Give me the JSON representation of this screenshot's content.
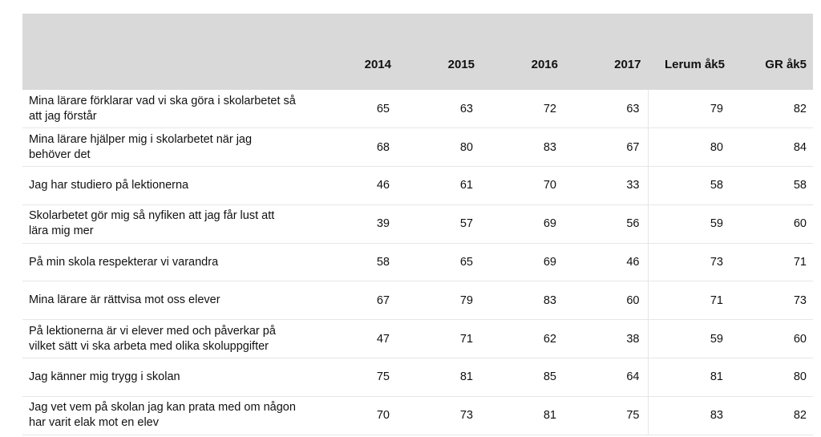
{
  "chart_data": {
    "type": "table",
    "columns": [
      "",
      "2014",
      "2015",
      "2016",
      "2017",
      "Lerum åk5",
      "GR åk5"
    ],
    "rows": [
      {
        "label": "Mina lärare förklarar vad vi ska göra i skolarbetet så att jag förstår",
        "values": [
          65,
          63,
          72,
          63,
          79,
          82
        ]
      },
      {
        "label": "Mina lärare hjälper mig i skolarbetet när jag behöver det",
        "values": [
          68,
          80,
          83,
          67,
          80,
          84
        ]
      },
      {
        "label": "Jag har studiero på lektionerna",
        "values": [
          46,
          61,
          70,
          33,
          58,
          58
        ]
      },
      {
        "label": "Skolarbetet gör mig så nyfiken att jag får lust att lära mig mer",
        "values": [
          39,
          57,
          69,
          56,
          59,
          60
        ]
      },
      {
        "label": "På min skola respekterar vi varandra",
        "values": [
          58,
          65,
          69,
          46,
          73,
          71
        ]
      },
      {
        "label": "Mina lärare är rättvisa mot oss elever",
        "values": [
          67,
          79,
          83,
          60,
          71,
          73
        ]
      },
      {
        "label": "På lektionerna är vi elever med och påverkar på vilket sätt vi ska arbeta med olika skoluppgifter",
        "values": [
          47,
          71,
          62,
          38,
          59,
          60
        ]
      },
      {
        "label": "Jag känner mig trygg i skolan",
        "values": [
          75,
          81,
          85,
          64,
          81,
          80
        ]
      },
      {
        "label": "Jag vet vem på skolan jag kan prata med om någon har varit elak mot en elev",
        "values": [
          70,
          73,
          81,
          75,
          83,
          82
        ]
      }
    ]
  }
}
